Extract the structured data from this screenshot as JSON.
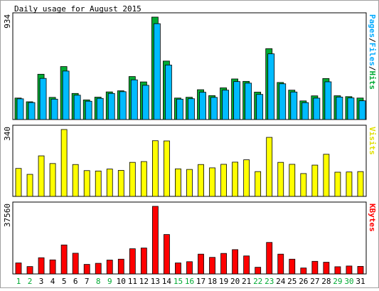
{
  "chart_data": [
    {
      "type": "bar",
      "title": "Daily usage for August 2015",
      "categories": [
        "1",
        "2",
        "3",
        "4",
        "5",
        "6",
        "7",
        "8",
        "9",
        "10",
        "11",
        "12",
        "13",
        "14",
        "15",
        "16",
        "17",
        "18",
        "19",
        "20",
        "21",
        "22",
        "23",
        "24",
        "25",
        "26",
        "27",
        "28",
        "29",
        "30",
        "31"
      ],
      "weekend_days": [
        "1",
        "2",
        "8",
        "9",
        "15",
        "16",
        "22",
        "23",
        "29",
        "30"
      ],
      "ylabel_parts": [
        "Pages",
        "Files",
        "Hits"
      ],
      "y_tick_label": "934",
      "ylim": [
        0,
        934
      ],
      "series": [
        {
          "name": "Hits",
          "color": "#00aa33",
          "values": [
            196,
            162,
            413,
            202,
            483,
            238,
            179,
            204,
            252,
            262,
            392,
            343,
            934,
            533,
            196,
            203,
            272,
            218,
            289,
            370,
            348,
            250,
            646,
            338,
            268,
            170,
            216,
            374,
            217,
            209,
            196
          ]
        },
        {
          "name": "Files",
          "color": "#00bbff",
          "values": [
            189,
            155,
            375,
            186,
            442,
            222,
            167,
            193,
            238,
            254,
            362,
            312,
            874,
            497,
            186,
            190,
            249,
            202,
            268,
            346,
            332,
            229,
            599,
            326,
            251,
            154,
            195,
            344,
            205,
            197,
            171
          ]
        },
        {
          "name": "Pages",
          "color": "#00bbff",
          "values": [
            189,
            155,
            375,
            186,
            442,
            222,
            167,
            193,
            238,
            254,
            362,
            312,
            874,
            497,
            186,
            190,
            249,
            202,
            268,
            346,
            332,
            229,
            599,
            326,
            251,
            154,
            195,
            344,
            205,
            197,
            171
          ]
        }
      ]
    },
    {
      "type": "bar",
      "ylabel": "Visits",
      "y_tick_label": "340",
      "ylim": [
        0,
        340
      ],
      "series": [
        {
          "name": "Visits",
          "color": "#ffff00",
          "values": [
            142,
            112,
            206,
            167,
            340,
            162,
            131,
            129,
            139,
            132,
            173,
            177,
            283,
            282,
            140,
            137,
            162,
            145,
            163,
            174,
            186,
            126,
            300,
            173,
            163,
            116,
            159,
            214,
            123,
            124,
            126
          ]
        }
      ]
    },
    {
      "type": "bar",
      "ylabel": "KBytes",
      "y_tick_label": "37560",
      "ylim": [
        0,
        37560
      ],
      "series": [
        {
          "name": "KBytes",
          "color": "#ff0000",
          "values": [
            6100,
            4100,
            9000,
            7800,
            16100,
            11500,
            5300,
            5900,
            7700,
            8200,
            14000,
            14400,
            37560,
            21900,
            6100,
            6800,
            11000,
            9200,
            11400,
            13500,
            10000,
            3700,
            17500,
            11000,
            8200,
            3300,
            7000,
            6500,
            4000,
            4400,
            4200
          ]
        }
      ]
    }
  ]
}
